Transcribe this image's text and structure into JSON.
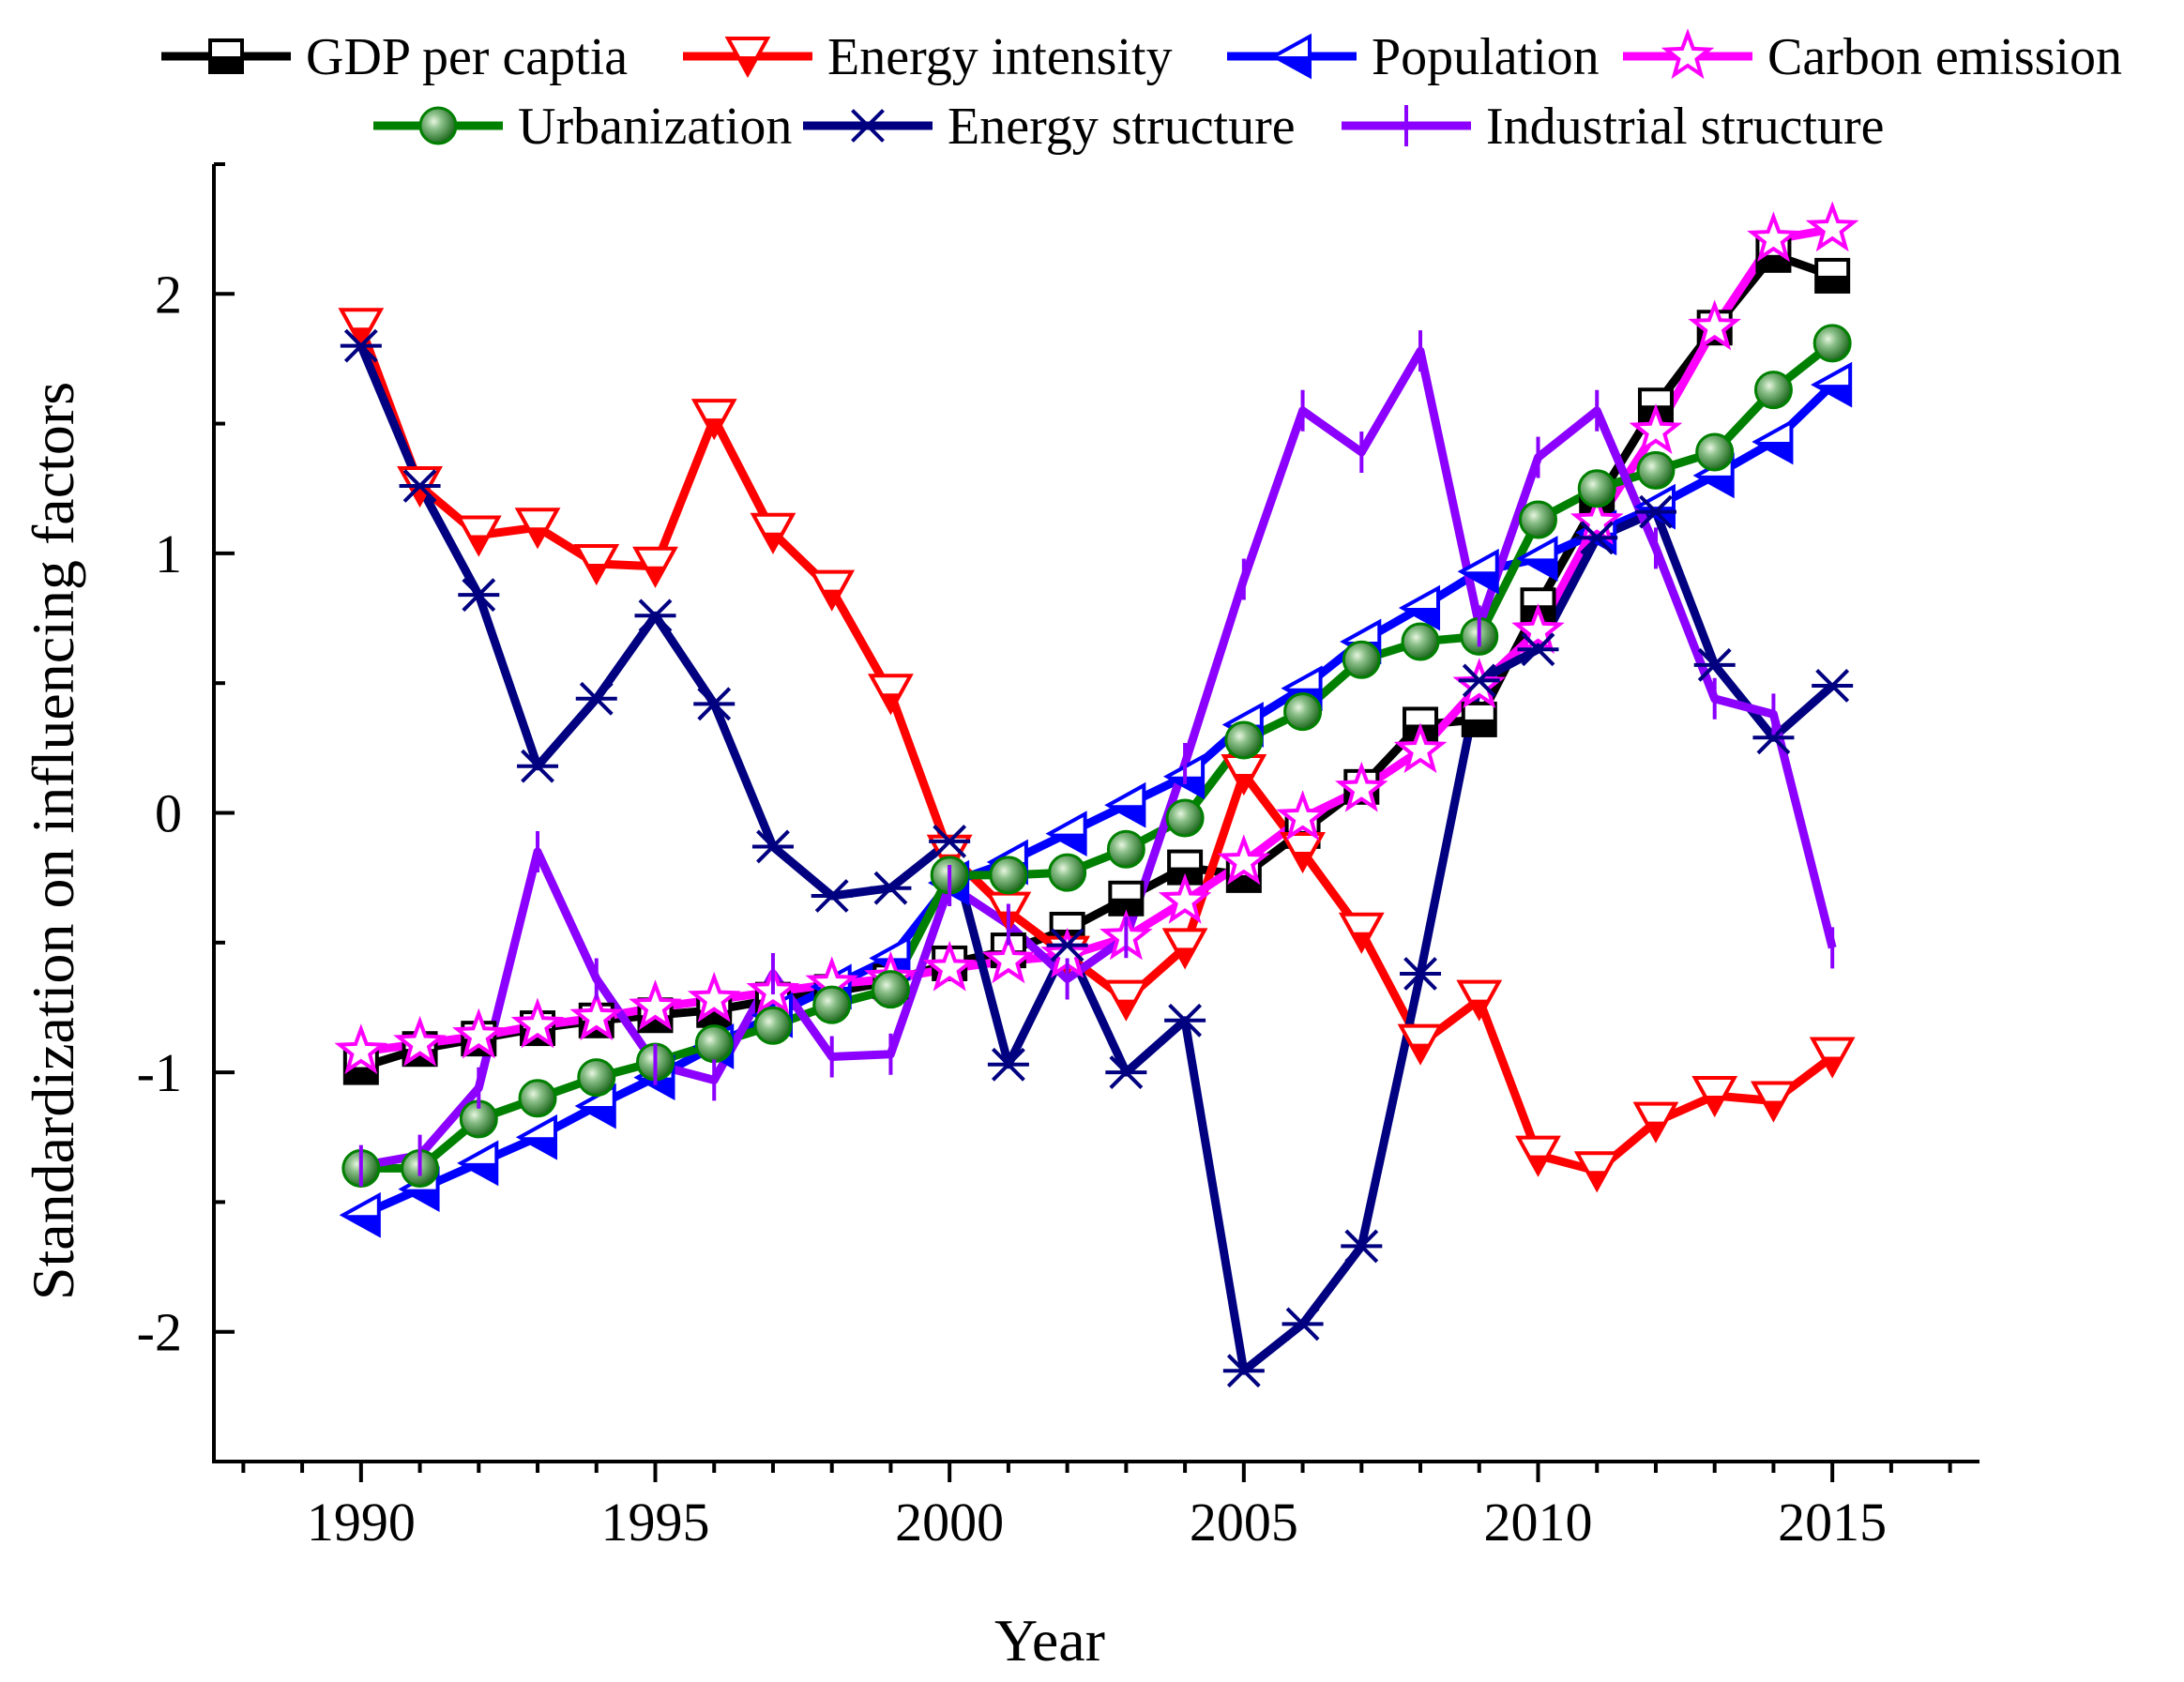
{
  "chart_data": {
    "type": "line",
    "xlabel": "Year",
    "ylabel": "Standardization on influencing factors",
    "xlim": [
      1987.5,
      2017.5
    ],
    "ylim": [
      -2.5,
      2.5
    ],
    "x_ticks": [
      1990,
      1995,
      2000,
      2005,
      2010,
      2015
    ],
    "x_tick_labels": [
      "1990",
      "1995",
      "2000",
      "2005",
      "2010",
      "2015"
    ],
    "y_ticks": [
      -2,
      -1,
      0,
      1,
      2
    ],
    "y_tick_labels": [
      "-2",
      "-1",
      "0",
      "1",
      "2"
    ],
    "grid": false,
    "legend_position": "top",
    "x": [
      1990,
      1991,
      1992,
      1993,
      1994,
      1995,
      1996,
      1997,
      1998,
      1999,
      2000,
      2001,
      2002,
      2003,
      2004,
      2005,
      2006,
      2007,
      2008,
      2009,
      2010,
      2011,
      2012,
      2013,
      2014,
      2015
    ],
    "series": [
      {
        "name": "GDP per captia",
        "color": "#000000",
        "marker": "square-half",
        "values": [
          -0.98,
          -0.91,
          -0.87,
          -0.83,
          -0.8,
          -0.78,
          -0.76,
          -0.72,
          -0.69,
          -0.65,
          -0.58,
          -0.53,
          -0.45,
          -0.33,
          -0.21,
          -0.24,
          -0.07,
          0.1,
          0.34,
          0.36,
          0.8,
          1.2,
          1.57,
          1.87,
          2.15,
          2.07
        ]
      },
      {
        "name": "Energy intensity",
        "color": "#ff0000",
        "marker": "triangle-down-half",
        "values": [
          1.87,
          1.26,
          1.07,
          1.1,
          0.96,
          0.95,
          1.52,
          1.08,
          0.86,
          0.46,
          -0.16,
          -0.38,
          -0.55,
          -0.72,
          -0.52,
          0.15,
          -0.15,
          -0.46,
          -0.89,
          -0.72,
          -1.32,
          -1.38,
          -1.19,
          -1.09,
          -1.11,
          -0.94
        ]
      },
      {
        "name": "Population",
        "color": "#0000ff",
        "marker": "triangle-left-half",
        "values": [
          -1.55,
          -1.45,
          -1.35,
          -1.25,
          -1.13,
          -1.02,
          -0.9,
          -0.78,
          -0.67,
          -0.56,
          -0.27,
          -0.19,
          -0.08,
          0.03,
          0.14,
          0.34,
          0.48,
          0.66,
          0.79,
          0.93,
          0.98,
          1.08,
          1.18,
          1.3,
          1.43,
          1.65
        ]
      },
      {
        "name": "Carbon emission",
        "color": "#ff00ff",
        "marker": "star-half",
        "values": [
          -0.92,
          -0.89,
          -0.86,
          -0.82,
          -0.79,
          -0.75,
          -0.72,
          -0.69,
          -0.66,
          -0.64,
          -0.6,
          -0.57,
          -0.55,
          -0.48,
          -0.34,
          -0.19,
          -0.02,
          0.09,
          0.24,
          0.49,
          0.7,
          1.12,
          1.47,
          1.87,
          2.21,
          2.25
        ]
      },
      {
        "name": "Urbanization",
        "color": "#008000",
        "marker": "circle-ball",
        "values": [
          -1.37,
          -1.37,
          -1.18,
          -1.1,
          -1.02,
          -0.96,
          -0.89,
          -0.82,
          -0.74,
          -0.68,
          -0.24,
          -0.24,
          -0.23,
          -0.14,
          -0.02,
          0.28,
          0.39,
          0.59,
          0.66,
          0.68,
          1.13,
          1.25,
          1.32,
          1.39,
          1.63,
          1.81
        ]
      },
      {
        "name": "Energy structure",
        "color": "#000080",
        "marker": "asterisk",
        "values": [
          1.8,
          1.26,
          0.84,
          0.18,
          0.44,
          0.76,
          0.42,
          -0.13,
          -0.32,
          -0.29,
          -0.11,
          -0.97,
          -0.51,
          -1.0,
          -0.8,
          -2.15,
          -1.97,
          -1.67,
          -0.62,
          0.51,
          0.63,
          1.06,
          1.16,
          0.57,
          0.29,
          0.49
        ]
      },
      {
        "name": "Industrial structure",
        "color": "#8b00ff",
        "marker": "vline",
        "values": [
          -1.36,
          -1.32,
          -1.06,
          -0.15,
          -0.64,
          -0.97,
          -1.03,
          -0.62,
          -0.94,
          -0.93,
          -0.28,
          -0.43,
          -0.64,
          -0.48,
          0.19,
          0.9,
          1.55,
          1.39,
          1.78,
          0.72,
          1.37,
          1.55,
          1.02,
          0.44,
          0.38,
          -0.52
        ]
      }
    ]
  }
}
